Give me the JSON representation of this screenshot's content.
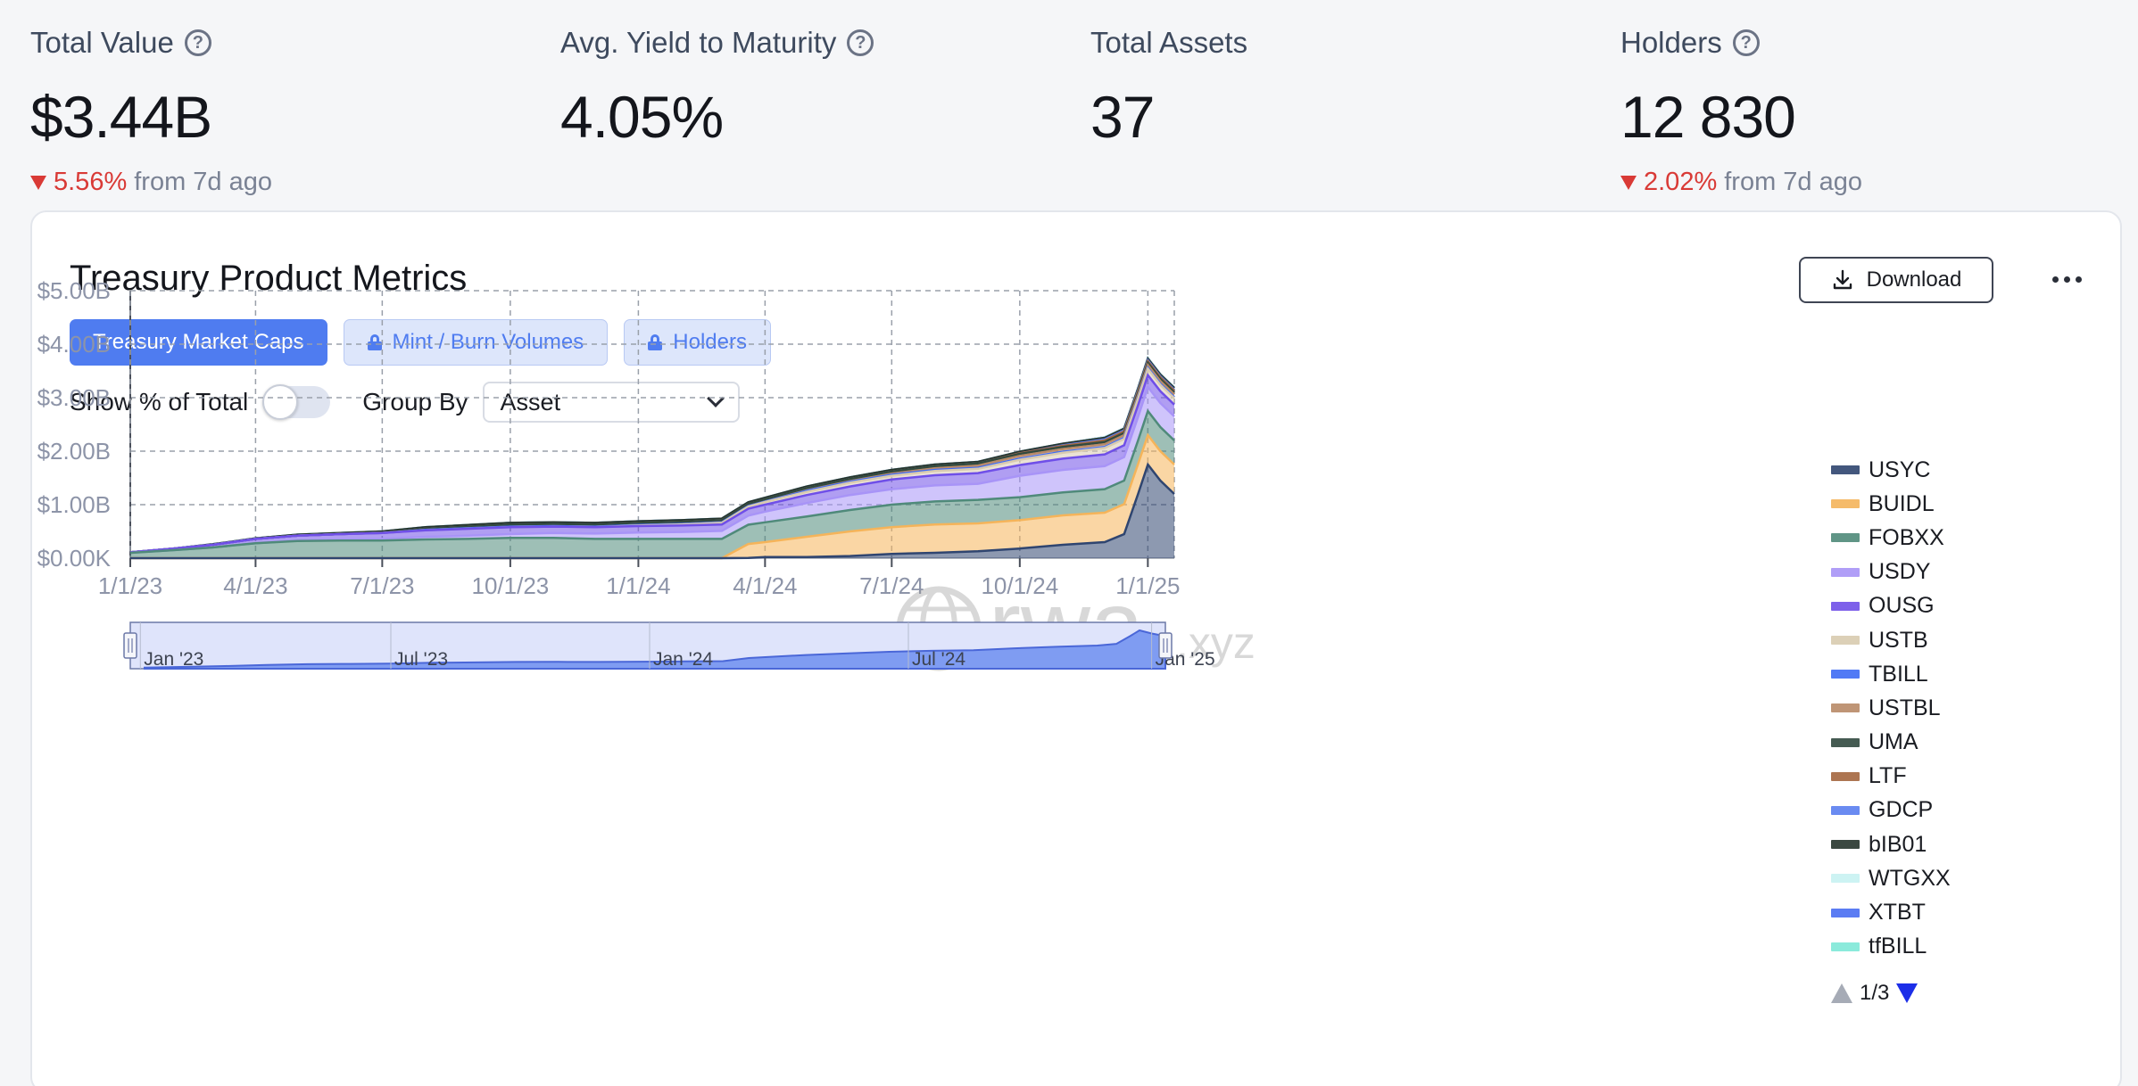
{
  "kpis": [
    {
      "label": "Total Value",
      "value": "$3.44B",
      "change": "5.56%",
      "change_suffix": "from 7d ago",
      "has_help": true
    },
    {
      "label": "Avg. Yield to Maturity",
      "value": "4.05%",
      "change": "",
      "change_suffix": "",
      "has_help": true
    },
    {
      "label": "Total Assets",
      "value": "37",
      "change": "",
      "change_suffix": "",
      "has_help": false
    },
    {
      "label": "Holders",
      "value": "12 830",
      "change": "2.02%",
      "change_suffix": "from 7d ago",
      "has_help": true
    }
  ],
  "card": {
    "title": "Treasury Product Metrics",
    "download_label": "Download",
    "tabs": [
      {
        "label": "Treasury Market Caps",
        "active": true,
        "locked": false
      },
      {
        "label": "Mint / Burn Volumes",
        "active": false,
        "locked": true
      },
      {
        "label": "Holders",
        "active": false,
        "locked": true
      }
    ],
    "show_pct_label": "Show % of Total",
    "group_by_label": "Group By",
    "group_by_value": "Asset",
    "watermark_main": "rwa",
    "watermark_suffix": ".xyz",
    "pager_text": "1/3"
  },
  "colors": {
    "accent": "#4f7cf0",
    "negative": "#d93a36"
  },
  "chart_data": {
    "type": "area",
    "stacked": true,
    "x": [
      "1/1/23",
      "2/1/23",
      "3/1/23",
      "4/1/23",
      "5/1/23",
      "6/1/23",
      "7/1/23",
      "8/1/23",
      "9/1/23",
      "10/1/23",
      "11/1/23",
      "12/1/23",
      "1/1/24",
      "2/1/24",
      "3/1/24",
      "3/20/24",
      "4/1/24",
      "5/1/24",
      "6/1/24",
      "7/1/24",
      "8/1/24",
      "9/1/24",
      "10/1/24",
      "11/1/24",
      "12/1/24",
      "12/15/24",
      "12/25/24",
      "1/1/25",
      "1/10/25",
      "1/20/25"
    ],
    "xticks": [
      "1/1/23",
      "4/1/23",
      "7/1/23",
      "10/1/23",
      "1/1/24",
      "4/1/24",
      "7/1/24",
      "10/1/24",
      "1/1/25"
    ],
    "yticks": [
      "$0.00K",
      "$1.00B",
      "$2.00B",
      "$3.00B",
      "$4.00B",
      "$5.00B"
    ],
    "ylim": [
      0,
      5000000000
    ],
    "grid": true,
    "legend_position": "right",
    "series": [
      {
        "name": "USYC",
        "color": "#2f4570",
        "values": [
          0,
          0,
          0,
          0,
          0,
          0,
          0,
          0,
          0,
          0,
          0,
          0,
          0,
          0,
          0,
          0.005,
          0.02,
          0.02,
          0.04,
          0.08,
          0.1,
          0.13,
          0.18,
          0.25,
          0.3,
          0.45,
          1.2,
          1.75,
          1.45,
          1.2
        ]
      },
      {
        "name": "BUIDL",
        "color": "#f5b45a",
        "values": [
          0,
          0,
          0,
          0,
          0,
          0,
          0,
          0,
          0,
          0,
          0,
          0,
          0,
          0,
          0,
          0.26,
          0.28,
          0.38,
          0.46,
          0.5,
          0.53,
          0.52,
          0.53,
          0.55,
          0.55,
          0.56,
          0.56,
          0.55,
          0.55,
          0.55
        ]
      },
      {
        "name": "FOBXX",
        "color": "#4f8a7a",
        "values": [
          0.1,
          0.15,
          0.2,
          0.28,
          0.32,
          0.33,
          0.33,
          0.35,
          0.36,
          0.38,
          0.38,
          0.36,
          0.36,
          0.36,
          0.36,
          0.36,
          0.37,
          0.38,
          0.4,
          0.42,
          0.43,
          0.44,
          0.43,
          0.43,
          0.44,
          0.44,
          0.44,
          0.45,
          0.45,
          0.45
        ]
      },
      {
        "name": "USDY",
        "color": "#a894f7",
        "values": [
          0,
          0,
          0,
          0,
          0.01,
          0.02,
          0.03,
          0.05,
          0.06,
          0.07,
          0.09,
          0.1,
          0.12,
          0.13,
          0.15,
          0.17,
          0.2,
          0.25,
          0.28,
          0.29,
          0.3,
          0.3,
          0.4,
          0.42,
          0.43,
          0.44,
          0.44,
          0.45,
          0.45,
          0.45
        ]
      },
      {
        "name": "OUSG",
        "color": "#6f4fe8",
        "values": [
          0.01,
          0.03,
          0.05,
          0.08,
          0.09,
          0.1,
          0.11,
          0.12,
          0.13,
          0.13,
          0.12,
          0.12,
          0.12,
          0.12,
          0.12,
          0.13,
          0.13,
          0.15,
          0.16,
          0.18,
          0.19,
          0.2,
          0.2,
          0.21,
          0.22,
          0.22,
          0.22,
          0.22,
          0.22,
          0.22
        ]
      },
      {
        "name": "USTB",
        "color": "#d9cbb0",
        "values": [
          0,
          0,
          0,
          0,
          0,
          0,
          0,
          0,
          0,
          0,
          0,
          0,
          0.01,
          0.02,
          0.03,
          0.04,
          0.05,
          0.06,
          0.07,
          0.07,
          0.08,
          0.08,
          0.1,
          0.11,
          0.12,
          0.12,
          0.12,
          0.12,
          0.12,
          0.12
        ]
      },
      {
        "name": "TBILL",
        "color": "#3f6cf5",
        "values": [
          0,
          0,
          0,
          0,
          0,
          0,
          0,
          0.01,
          0.01,
          0.01,
          0.01,
          0.01,
          0.01,
          0.01,
          0.01,
          0.01,
          0.01,
          0.02,
          0.02,
          0.02,
          0.02,
          0.02,
          0.02,
          0.02,
          0.02,
          0.02,
          0.02,
          0.02,
          0.02,
          0.02
        ]
      },
      {
        "name": "USTBL",
        "color": "#b98a68",
        "values": [
          0,
          0,
          0,
          0,
          0,
          0,
          0,
          0,
          0,
          0,
          0,
          0,
          0,
          0,
          0,
          0,
          0,
          0.01,
          0.01,
          0.02,
          0.03,
          0.04,
          0.05,
          0.05,
          0.05,
          0.05,
          0.05,
          0.05,
          0.05,
          0.05
        ]
      },
      {
        "name": "UMA",
        "color": "#314a40",
        "values": [
          0,
          0,
          0,
          0,
          0,
          0,
          0.01,
          0.02,
          0.03,
          0.04,
          0.04,
          0.04,
          0.04,
          0.04,
          0.04,
          0.04,
          0.04,
          0.04,
          0.04,
          0.04,
          0.04,
          0.04,
          0.04,
          0.04,
          0.04,
          0.04,
          0.04,
          0.04,
          0.04,
          0.04
        ]
      },
      {
        "name": "LTF",
        "color": "#a5673f",
        "values": [
          0,
          0,
          0,
          0,
          0,
          0,
          0,
          0,
          0,
          0,
          0,
          0,
          0,
          0,
          0,
          0,
          0,
          0,
          0,
          0,
          0,
          0,
          0.01,
          0.02,
          0.03,
          0.03,
          0.03,
          0.03,
          0.03,
          0.03
        ]
      },
      {
        "name": "GDCP",
        "color": "#5a7ff0",
        "values": [
          0,
          0,
          0,
          0,
          0,
          0,
          0,
          0,
          0,
          0,
          0,
          0,
          0,
          0,
          0,
          0,
          0,
          0,
          0,
          0,
          0,
          0,
          0,
          0.01,
          0.02,
          0.02,
          0.02,
          0.02,
          0.02,
          0.02
        ]
      },
      {
        "name": "bIB01",
        "color": "#26352d",
        "values": [
          0,
          0,
          0.01,
          0.01,
          0.02,
          0.02,
          0.02,
          0.03,
          0.03,
          0.03,
          0.03,
          0.03,
          0.03,
          0.03,
          0.03,
          0.03,
          0.03,
          0.03,
          0.03,
          0.03,
          0.03,
          0.03,
          0.03,
          0.03,
          0.03,
          0.03,
          0.03,
          0.03,
          0.03,
          0.03
        ]
      },
      {
        "name": "WTGXX",
        "color": "#c8f2f2",
        "values": [
          0,
          0,
          0,
          0,
          0,
          0,
          0,
          0,
          0,
          0,
          0,
          0,
          0,
          0,
          0,
          0,
          0,
          0,
          0,
          0,
          0,
          0,
          0,
          0,
          0.01,
          0.01,
          0.01,
          0.01,
          0.01,
          0.01
        ]
      },
      {
        "name": "XTBT",
        "color": "#4a6ef2",
        "values": [
          0,
          0,
          0,
          0,
          0,
          0,
          0,
          0,
          0,
          0,
          0,
          0,
          0,
          0,
          0,
          0,
          0,
          0,
          0,
          0,
          0,
          0,
          0,
          0,
          0,
          0,
          0,
          0,
          0,
          0
        ]
      },
      {
        "name": "tfBILL",
        "color": "#7fe8d8",
        "values": [
          0,
          0,
          0,
          0,
          0,
          0,
          0,
          0,
          0,
          0,
          0,
          0,
          0,
          0,
          0,
          0,
          0,
          0,
          0,
          0,
          0,
          0,
          0,
          0,
          0,
          0,
          0,
          0,
          0,
          0
        ]
      }
    ],
    "navigator": {
      "labels": [
        "Jan '23",
        "Jul '23",
        "Jan '24",
        "Jul '24",
        "Jan '25"
      ]
    }
  }
}
